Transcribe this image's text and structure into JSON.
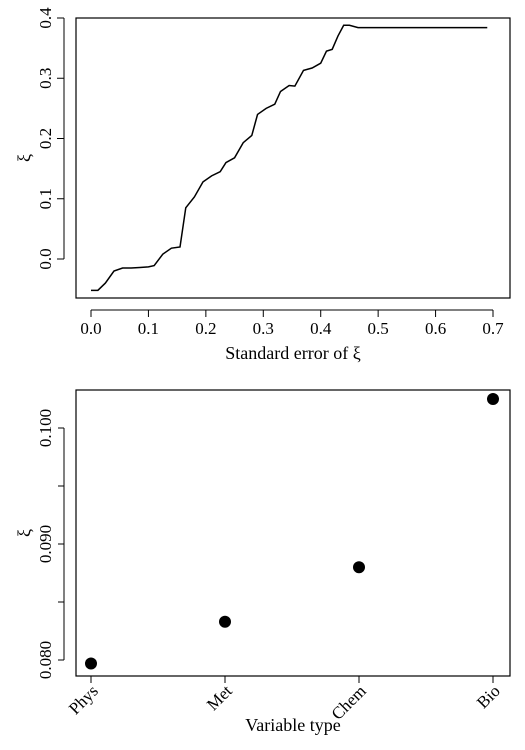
{
  "chart_data": [
    {
      "type": "line",
      "title": "",
      "xlabel": "Standard error of ξ",
      "ylabel": "ξ",
      "xlim": [
        0,
        0.7
      ],
      "ylim": [
        -0.05,
        0.4
      ],
      "xticks": [
        "0.0",
        "0.1",
        "0.2",
        "0.3",
        "0.4",
        "0.5",
        "0.6",
        "0.7"
      ],
      "yticks": [
        "0.0",
        "0.1",
        "0.2",
        "0.3",
        "0.4"
      ],
      "grid": false,
      "series": [
        {
          "x": [
            0.0,
            0.012,
            0.025,
            0.04,
            0.055,
            0.07,
            0.085,
            0.1,
            0.11,
            0.125,
            0.14,
            0.155,
            0.165,
            0.18,
            0.195,
            0.21,
            0.225,
            0.235,
            0.25,
            0.265,
            0.28,
            0.29,
            0.305,
            0.32,
            0.33,
            0.345,
            0.355,
            0.37,
            0.385,
            0.4,
            0.41,
            0.42,
            0.43,
            0.44,
            0.45,
            0.465,
            0.5,
            0.55,
            0.6,
            0.65,
            0.69
          ],
          "y": [
            -0.052,
            -0.052,
            -0.04,
            -0.02,
            -0.015,
            -0.015,
            -0.014,
            -0.013,
            -0.011,
            0.008,
            0.018,
            0.02,
            0.085,
            0.103,
            0.128,
            0.138,
            0.145,
            0.16,
            0.168,
            0.193,
            0.205,
            0.24,
            0.25,
            0.257,
            0.278,
            0.288,
            0.287,
            0.313,
            0.317,
            0.325,
            0.345,
            0.348,
            0.37,
            0.388,
            0.388,
            0.384,
            0.384,
            0.384,
            0.384,
            0.384,
            0.384
          ]
        }
      ]
    },
    {
      "type": "scatter",
      "title": "",
      "xlabel": "Variable type",
      "ylabel": "ξ",
      "categories": [
        "Phys",
        "Met",
        "Chem",
        "Bio"
      ],
      "values": [
        0.0797,
        0.0833,
        0.088,
        0.1025
      ],
      "ylim": [
        0.079,
        0.1035
      ],
      "yticks": [
        "0.080",
        "0.090",
        "0.100"
      ],
      "grid": false
    }
  ]
}
